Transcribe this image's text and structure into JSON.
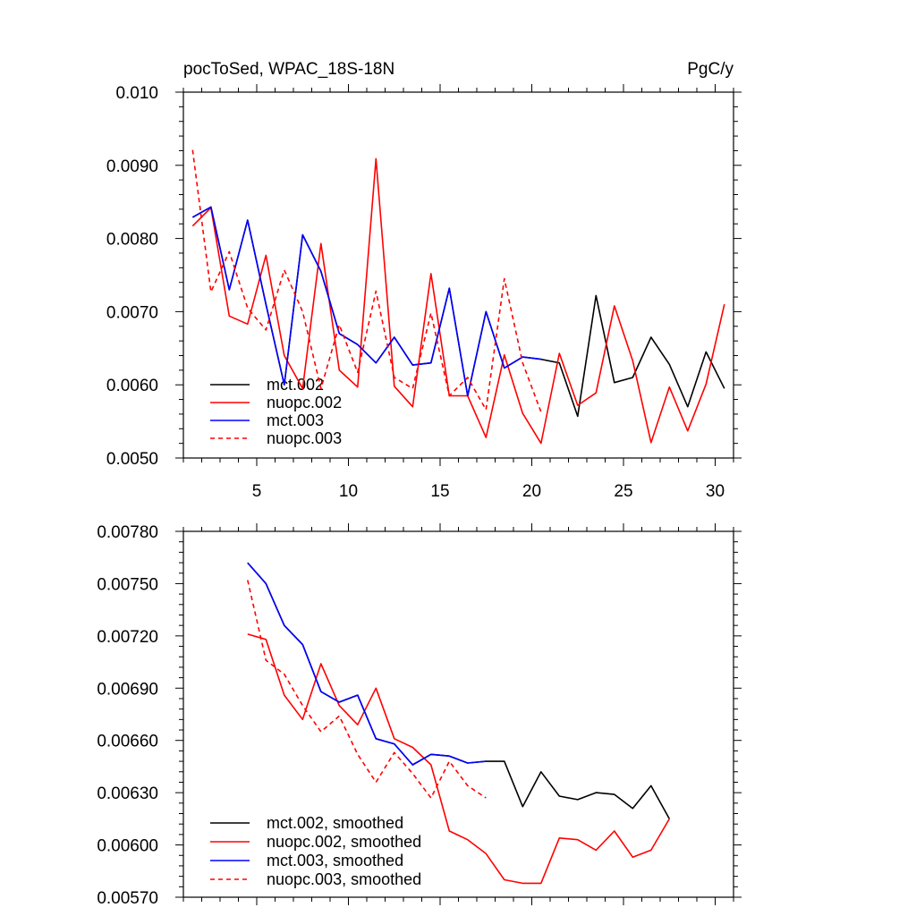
{
  "chart_data": [
    {
      "type": "line",
      "title": "pocToSed, WPAC_18S-18N",
      "units": "PgC/y",
      "xlabel": "",
      "ylabel": "",
      "xlim": [
        1,
        31
      ],
      "ylim": [
        0.005,
        0.01
      ],
      "x_ticks": [
        5,
        10,
        15,
        20,
        25,
        30
      ],
      "y_ticks": [
        "0.0050",
        "0.0060",
        "0.0070",
        "0.0080",
        "0.0090",
        "0.010"
      ],
      "legend_position": "bottom-left",
      "series": [
        {
          "name": "mct.002",
          "color": "#000000",
          "dash": "solid",
          "x": [
            1.5,
            2.5,
            3.5,
            4.5,
            5.5,
            6.5,
            7.5,
            8.5,
            9.5,
            10.5,
            11.5,
            12.5,
            13.5,
            14.5,
            15.5,
            16.5,
            17.5,
            18.5,
            19.5,
            20.5,
            21.5,
            22.5,
            23.5,
            24.5,
            25.5,
            26.5,
            27.5,
            28.5,
            29.5,
            30.5
          ],
          "values": [
            0.00829,
            0.00843,
            0.0073,
            0.00825,
            0.0071,
            0.006,
            0.00805,
            0.00755,
            0.0067,
            0.00655,
            0.0063,
            0.00665,
            0.00627,
            0.0063,
            0.00732,
            0.00585,
            0.007,
            0.00623,
            0.00638,
            0.00635,
            0.0063,
            0.00557,
            0.00722,
            0.00603,
            0.0061,
            0.00665,
            0.00628,
            0.0057,
            0.00645,
            0.00595
          ]
        },
        {
          "name": "nuopc.002",
          "color": "#ff0000",
          "dash": "solid",
          "x": [
            1.5,
            2.5,
            3.5,
            4.5,
            5.5,
            6.5,
            7.5,
            8.5,
            9.5,
            10.5,
            11.5,
            12.5,
            13.5,
            14.5,
            15.5,
            16.5,
            17.5,
            18.5,
            19.5,
            20.5,
            21.5,
            22.5,
            23.5,
            24.5,
            25.5,
            26.5,
            27.5,
            28.5,
            29.5,
            30.5
          ],
          "values": [
            0.00817,
            0.00842,
            0.00694,
            0.00683,
            0.00777,
            0.0064,
            0.00595,
            0.00793,
            0.0062,
            0.00597,
            0.00909,
            0.00598,
            0.0057,
            0.00752,
            0.00585,
            0.00585,
            0.00528,
            0.00641,
            0.00561,
            0.0052,
            0.00643,
            0.00572,
            0.00589,
            0.00708,
            0.00633,
            0.00521,
            0.00597,
            0.00537,
            0.00601,
            0.0071
          ]
        },
        {
          "name": "mct.003",
          "color": "#0000ff",
          "dash": "solid",
          "x": [
            1.5,
            2.5,
            3.5,
            4.5,
            5.5,
            6.5,
            7.5,
            8.5,
            9.5,
            10.5,
            11.5,
            12.5,
            13.5,
            14.5,
            15.5,
            16.5,
            17.5,
            18.5,
            19.5,
            20.5
          ],
          "values": [
            0.00829,
            0.00843,
            0.0073,
            0.00825,
            0.0071,
            0.006,
            0.00805,
            0.00755,
            0.0067,
            0.00655,
            0.0063,
            0.00665,
            0.00627,
            0.0063,
            0.00732,
            0.00585,
            0.007,
            0.00623,
            0.00638,
            0.00635
          ]
        },
        {
          "name": "nuopc.003",
          "color": "#ff0000",
          "dash": "dashed",
          "x": [
            1.5,
            2.5,
            3.5,
            4.5,
            5.5,
            6.5,
            7.5,
            8.5,
            9.5,
            10.5,
            11.5,
            12.5,
            13.5,
            14.5,
            15.5,
            16.5,
            17.5,
            18.5,
            19.5,
            20.5
          ],
          "values": [
            0.00921,
            0.00727,
            0.00782,
            0.00705,
            0.00675,
            0.00757,
            0.007,
            0.00595,
            0.00682,
            0.00617,
            0.00728,
            0.0061,
            0.00595,
            0.00698,
            0.00585,
            0.0061,
            0.00566,
            0.00745,
            0.0063,
            0.00563
          ]
        }
      ]
    },
    {
      "type": "line",
      "title": "",
      "xlabel": "",
      "ylabel": "",
      "xlim": [
        1,
        31
      ],
      "ylim": [
        0.0057,
        0.0078
      ],
      "x_ticks": [
        5,
        10,
        15,
        20,
        25,
        30
      ],
      "y_ticks": [
        "0.00570",
        "0.00600",
        "0.00630",
        "0.00660",
        "0.00690",
        "0.00720",
        "0.00750",
        "0.00780"
      ],
      "legend_position": "bottom-left",
      "series": [
        {
          "name": "mct.002, smoothed",
          "color": "#000000",
          "dash": "solid",
          "x": [
            4.5,
            5.5,
            6.5,
            7.5,
            8.5,
            9.5,
            10.5,
            11.5,
            12.5,
            13.5,
            14.5,
            15.5,
            16.5,
            17.5,
            18.5,
            19.5,
            20.5,
            21.5,
            22.5,
            23.5,
            24.5,
            25.5,
            26.5,
            27.5
          ],
          "values": [
            0.00762,
            0.0075,
            0.00726,
            0.00715,
            0.00688,
            0.00682,
            0.00686,
            0.00661,
            0.00658,
            0.00646,
            0.00652,
            0.00651,
            0.00647,
            0.00648,
            0.00648,
            0.00622,
            0.00642,
            0.00628,
            0.00626,
            0.0063,
            0.00629,
            0.00621,
            0.00634,
            0.00615
          ]
        },
        {
          "name": "nuopc.002, smoothed",
          "color": "#ff0000",
          "dash": "solid",
          "x": [
            4.5,
            5.5,
            6.5,
            7.5,
            8.5,
            9.5,
            10.5,
            11.5,
            12.5,
            13.5,
            14.5,
            15.5,
            16.5,
            17.5,
            18.5,
            19.5,
            20.5,
            21.5,
            22.5,
            23.5,
            24.5,
            25.5,
            26.5,
            27.5
          ],
          "values": [
            0.00721,
            0.00718,
            0.00686,
            0.00672,
            0.00704,
            0.0068,
            0.00669,
            0.0069,
            0.00661,
            0.00656,
            0.00646,
            0.00608,
            0.00603,
            0.00595,
            0.0058,
            0.00578,
            0.00578,
            0.00604,
            0.00603,
            0.00597,
            0.00608,
            0.00593,
            0.00597,
            0.00615
          ]
        },
        {
          "name": "mct.003, smoothed",
          "color": "#0000ff",
          "dash": "solid",
          "x": [
            4.5,
            5.5,
            6.5,
            7.5,
            8.5,
            9.5,
            10.5,
            11.5,
            12.5,
            13.5,
            14.5,
            15.5,
            16.5,
            17.5
          ],
          "values": [
            0.00762,
            0.0075,
            0.00726,
            0.00715,
            0.00688,
            0.00682,
            0.00686,
            0.00661,
            0.00658,
            0.00646,
            0.00652,
            0.00651,
            0.00647,
            0.00648
          ]
        },
        {
          "name": "nuopc.003, smoothed",
          "color": "#ff0000",
          "dash": "dashed",
          "x": [
            4.5,
            5.5,
            6.5,
            7.5,
            8.5,
            9.5,
            10.5,
            11.5,
            12.5,
            13.5,
            14.5,
            15.5,
            16.5,
            17.5
          ],
          "values": [
            0.00752,
            0.00706,
            0.00698,
            0.0068,
            0.00665,
            0.00674,
            0.00652,
            0.00636,
            0.00653,
            0.00641,
            0.00627,
            0.00648,
            0.00634,
            0.00627
          ]
        }
      ]
    }
  ]
}
